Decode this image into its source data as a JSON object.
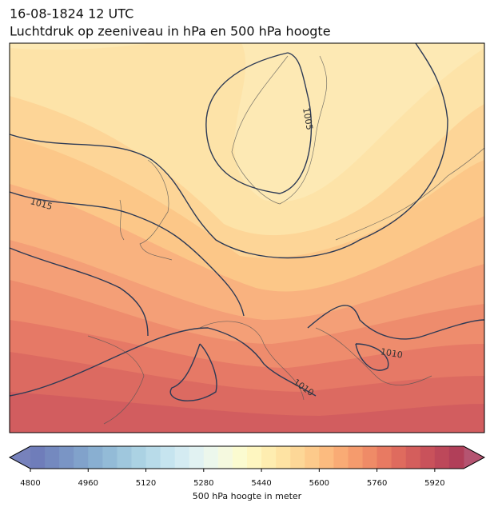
{
  "header": {
    "date": "16-08-1824 12 UTC",
    "title": "Luchtdruk op zeeniveau in hPa en 500 hPa hoogte"
  },
  "map": {
    "contour_labels": [
      "1005",
      "1015",
      "1010",
      "1010"
    ]
  },
  "colorbar": {
    "lim": [
      4800,
      6000
    ],
    "ticks": [
      4800,
      4960,
      5120,
      5280,
      5440,
      5600,
      5760,
      5920
    ],
    "label": "500 hPa hoogte in meter",
    "colors": [
      "#6f7dba",
      "#7489bf",
      "#7a95c5",
      "#81a2cb",
      "#89afd1",
      "#93bbd7",
      "#9fc7dd",
      "#abd2e3",
      "#b8dbe9",
      "#c6e4ef",
      "#d4ebf2",
      "#e1f2f2",
      "#ecf7ec",
      "#f5f9df",
      "#fbfbd0",
      "#fef6c0",
      "#feedb0",
      "#fee3a3",
      "#fdd797",
      "#fdca8b",
      "#fcbb7f",
      "#f9ab75",
      "#f59b6d",
      "#ef8b67",
      "#e87a62",
      "#df6b5e",
      "#d45e5c",
      "#c9525b",
      "#bd485a",
      "#b13f59"
    ],
    "low_color": "#5f6cb0",
    "high_color": "#a83658"
  }
}
